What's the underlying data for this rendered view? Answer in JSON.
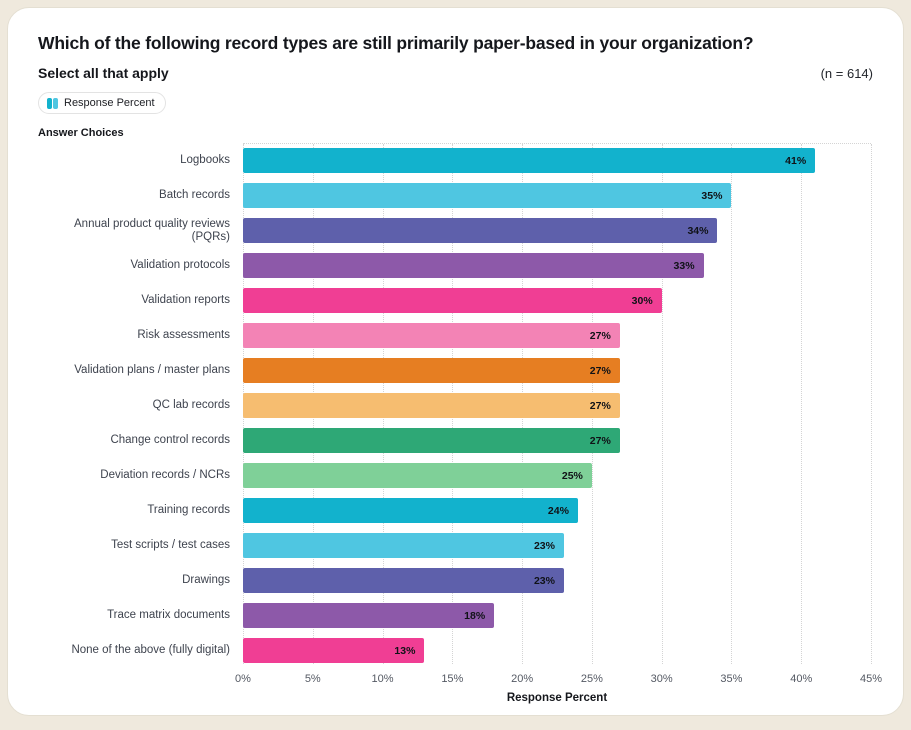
{
  "header": {
    "title": "Which of the following record types are still primarily paper-based in your organization?",
    "subtitle": "Select all that apply",
    "sample_size": "(n = 614)"
  },
  "legend": {
    "label": "Response Percent"
  },
  "answer_choices_label": "Answer Choices",
  "chart_data": {
    "type": "bar",
    "orientation": "horizontal",
    "title": "Which of the following record types are still primarily paper-based in your organization?",
    "subtitle": "Select all that apply",
    "n": 614,
    "legend": [
      "Response Percent"
    ],
    "xlabel": "Response Percent",
    "xlim": [
      0,
      45
    ],
    "grid": "dotted-vertical",
    "ticks": [
      0,
      5,
      10,
      15,
      20,
      25,
      30,
      35,
      40,
      45
    ],
    "tick_labels": [
      "0%",
      "5%",
      "10%",
      "15%",
      "20%",
      "25%",
      "30%",
      "35%",
      "40%",
      "45%"
    ],
    "categories": [
      "Logbooks",
      "Batch records",
      "Annual product quality reviews (PQRs)",
      "Validation protocols",
      "Validation reports",
      "Risk assessments",
      "Validation plans / master plans",
      "QC lab records",
      "Change control records",
      "Deviation records / NCRs",
      "Training records",
      "Test scripts / test cases",
      "Drawings",
      "Trace matrix documents",
      "None of the above (fully digital)"
    ],
    "values": [
      41,
      35,
      34,
      33,
      30,
      27,
      27,
      27,
      27,
      25,
      24,
      23,
      23,
      18,
      13
    ],
    "value_labels": [
      "41%",
      "35%",
      "34%",
      "33%",
      "30%",
      "27%",
      "27%",
      "27%",
      "27%",
      "25%",
      "24%",
      "23%",
      "23%",
      "18%",
      "13%"
    ],
    "colors": [
      "#12b2cd",
      "#4fc6e1",
      "#5e60ab",
      "#8d59a9",
      "#f03e94",
      "#f383b5",
      "#e67e22",
      "#f6bd70",
      "#2ea876",
      "#7fd098",
      "#12b2cd",
      "#4fc6e1",
      "#5e60ab",
      "#8d59a9",
      "#f03e94"
    ]
  }
}
